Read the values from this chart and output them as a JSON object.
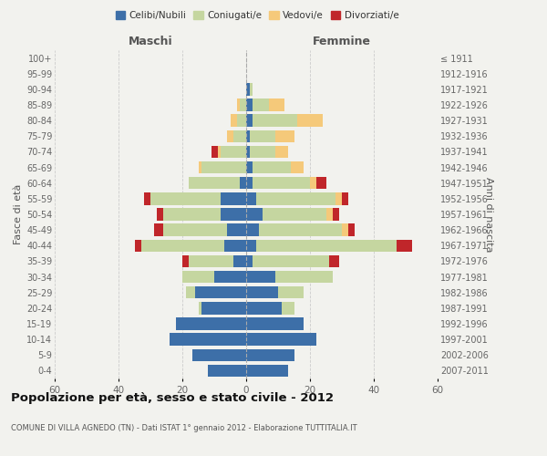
{
  "age_groups": [
    "0-4",
    "5-9",
    "10-14",
    "15-19",
    "20-24",
    "25-29",
    "30-34",
    "35-39",
    "40-44",
    "45-49",
    "50-54",
    "55-59",
    "60-64",
    "65-69",
    "70-74",
    "75-79",
    "80-84",
    "85-89",
    "90-94",
    "95-99",
    "100+"
  ],
  "birth_years": [
    "2007-2011",
    "2002-2006",
    "1997-2001",
    "1992-1996",
    "1987-1991",
    "1982-1986",
    "1977-1981",
    "1972-1976",
    "1967-1971",
    "1962-1966",
    "1957-1961",
    "1952-1956",
    "1947-1951",
    "1942-1946",
    "1937-1941",
    "1932-1936",
    "1927-1931",
    "1922-1926",
    "1917-1921",
    "1912-1916",
    "≤ 1911"
  ],
  "colors": {
    "celibi": "#3d6fa8",
    "coniugati": "#c5d6a0",
    "vedovi": "#f5c97a",
    "divorziati": "#c0262a"
  },
  "males": {
    "celibi": [
      12,
      17,
      24,
      22,
      14,
      16,
      10,
      4,
      7,
      6,
      8,
      8,
      2,
      0,
      0,
      0,
      0,
      0,
      0,
      0,
      0
    ],
    "coniugati": [
      0,
      0,
      0,
      0,
      1,
      3,
      10,
      14,
      26,
      20,
      18,
      22,
      16,
      14,
      8,
      4,
      3,
      2,
      0,
      0,
      0
    ],
    "vedovi": [
      0,
      0,
      0,
      0,
      0,
      0,
      0,
      0,
      0,
      0,
      0,
      0,
      0,
      1,
      1,
      2,
      2,
      1,
      0,
      0,
      0
    ],
    "divorziati": [
      0,
      0,
      0,
      0,
      0,
      0,
      0,
      2,
      2,
      3,
      2,
      2,
      0,
      0,
      2,
      0,
      0,
      0,
      0,
      0,
      0
    ]
  },
  "females": {
    "celibi": [
      13,
      15,
      22,
      18,
      11,
      10,
      9,
      2,
      3,
      4,
      5,
      3,
      2,
      2,
      1,
      1,
      2,
      2,
      1,
      0,
      0
    ],
    "coniugati": [
      0,
      0,
      0,
      0,
      4,
      8,
      18,
      24,
      44,
      26,
      20,
      25,
      18,
      12,
      8,
      8,
      14,
      5,
      1,
      0,
      0
    ],
    "vedovi": [
      0,
      0,
      0,
      0,
      0,
      0,
      0,
      0,
      0,
      2,
      2,
      2,
      2,
      4,
      4,
      6,
      8,
      5,
      0,
      0,
      0
    ],
    "divorziati": [
      0,
      0,
      0,
      0,
      0,
      0,
      0,
      3,
      5,
      2,
      2,
      2,
      3,
      0,
      0,
      0,
      0,
      0,
      0,
      0,
      0
    ]
  },
  "xlim": 60,
  "title": "Popolazione per età, sesso e stato civile - 2012",
  "subtitle": "COMUNE DI VILLA AGNEDO (TN) - Dati ISTAT 1° gennaio 2012 - Elaborazione TUTTITALIA.IT",
  "ylabel": "Fasce di età",
  "ylabel_right": "Anni di nascita",
  "xlabel_left": "Maschi",
  "xlabel_right": "Femmine",
  "legend_labels": [
    "Celibi/Nubili",
    "Coniugati/e",
    "Vedovi/e",
    "Divorziati/e"
  ],
  "bg_color": "#f2f2ee",
  "grid_color": "#cccccc"
}
